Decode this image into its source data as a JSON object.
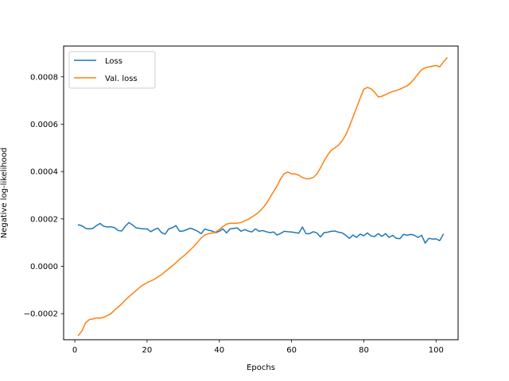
{
  "chart_data": {
    "type": "line",
    "title": "",
    "xlabel": "Epochs",
    "ylabel": "Negative log-likelihood",
    "xlim": [
      -3.1,
      106.1
    ],
    "ylim": [
      -0.00031,
      0.00093
    ],
    "x_ticks": [
      0,
      20,
      40,
      60,
      80,
      100
    ],
    "x_tick_labels": [
      "0",
      "20",
      "40",
      "60",
      "80",
      "100"
    ],
    "y_ticks": [
      -0.0002,
      0.0,
      0.0002,
      0.0004,
      0.0006,
      0.0008
    ],
    "y_tick_labels": [
      "−0.0002",
      "0.0000",
      "0.0002",
      "0.0004",
      "0.0006",
      "0.0008"
    ],
    "grid": false,
    "legend_position": "top-left",
    "series": [
      {
        "name": "Loss",
        "color": "#1f77b4",
        "points": [
          [
            1,
            0.000175
          ],
          [
            2,
            0.000171
          ],
          [
            3,
            0.00016
          ],
          [
            4,
            0.000158
          ],
          [
            5,
            0.00016
          ],
          [
            6,
            0.000172
          ],
          [
            7,
            0.000181
          ],
          [
            8,
            0.000169
          ],
          [
            9,
            0.000166
          ],
          [
            10,
            0.000167
          ],
          [
            11,
            0.000163
          ],
          [
            12,
            0.000151
          ],
          [
            13,
            0.000149
          ],
          [
            14,
            0.00017
          ],
          [
            15,
            0.000185
          ],
          [
            16,
            0.000174
          ],
          [
            17,
            0.000162
          ],
          [
            18,
            0.00016
          ],
          [
            19,
            0.000158
          ],
          [
            20,
            0.000158
          ],
          [
            21,
            0.000146
          ],
          [
            22,
            0.000155
          ],
          [
            23,
            0.000161
          ],
          [
            24,
            0.000142
          ],
          [
            25,
            0.000136
          ],
          [
            26,
            0.000158
          ],
          [
            27,
            0.000163
          ],
          [
            28,
            0.000172
          ],
          [
            29,
            0.000148
          ],
          [
            30,
            0.000149
          ],
          [
            31,
            0.000155
          ],
          [
            32,
            0.000161
          ],
          [
            33,
            0.000155
          ],
          [
            34,
            0.000148
          ],
          [
            35,
            0.000138
          ],
          [
            36,
            0.000158
          ],
          [
            37,
            0.000152
          ],
          [
            38,
            0.000149
          ],
          [
            39,
            0.000142
          ],
          [
            40,
            0.000148
          ],
          [
            41,
            0.000158
          ],
          [
            42,
            0.000141
          ],
          [
            43,
            0.000158
          ],
          [
            44,
            0.00016
          ],
          [
            45,
            0.000162
          ],
          [
            46,
            0.000148
          ],
          [
            47,
            0.000155
          ],
          [
            48,
            0.000149
          ],
          [
            49,
            0.000145
          ],
          [
            50,
            0.000158
          ],
          [
            51,
            0.000148
          ],
          [
            52,
            0.000151
          ],
          [
            53,
            0.000146
          ],
          [
            54,
            0.000142
          ],
          [
            55,
            0.000145
          ],
          [
            56,
            0.000132
          ],
          [
            57,
            0.000139
          ],
          [
            58,
            0.000148
          ],
          [
            59,
            0.000146
          ],
          [
            60,
            0.000145
          ],
          [
            61,
            0.000142
          ],
          [
            62,
            0.00014
          ],
          [
            63,
            0.000166
          ],
          [
            64,
            0.000138
          ],
          [
            65,
            0.000138
          ],
          [
            66,
            0.000146
          ],
          [
            67,
            0.000141
          ],
          [
            68,
            0.000124
          ],
          [
            69,
            0.000142
          ],
          [
            70,
            0.000144
          ],
          [
            71,
            0.000148
          ],
          [
            72,
            0.000149
          ],
          [
            73,
            0.000144
          ],
          [
            74,
            0.000141
          ],
          [
            75,
            0.000131
          ],
          [
            76,
            0.000118
          ],
          [
            77,
            0.000132
          ],
          [
            78,
            0.000122
          ],
          [
            79,
            0.000136
          ],
          [
            80,
            0.000129
          ],
          [
            81,
            0.000141
          ],
          [
            82,
            0.000128
          ],
          [
            83,
            0.000126
          ],
          [
            84,
            0.000138
          ],
          [
            85,
            0.000126
          ],
          [
            86,
            0.000138
          ],
          [
            87,
            0.000122
          ],
          [
            88,
            0.000131
          ],
          [
            89,
            0.000118
          ],
          [
            90,
            0.000117
          ],
          [
            91,
            0.000135
          ],
          [
            92,
            0.000131
          ],
          [
            93,
            0.000135
          ],
          [
            94,
            0.000131
          ],
          [
            95,
            0.000122
          ],
          [
            96,
            0.000131
          ],
          [
            97,
            9.8e-05
          ],
          [
            98,
            0.000118
          ],
          [
            99,
            0.000115
          ],
          [
            100,
            0.000116
          ],
          [
            101,
            0.000108
          ],
          [
            102,
            0.000135
          ]
        ]
      },
      {
        "name": "Val. loss",
        "color": "#ff7f0e",
        "points": [
          [
            1,
            -0.000292
          ],
          [
            2,
            -0.000272
          ],
          [
            3,
            -0.000238
          ],
          [
            4,
            -0.000225
          ],
          [
            5,
            -0.000222
          ],
          [
            6,
            -0.000218
          ],
          [
            7,
            -0.000219
          ],
          [
            8,
            -0.000215
          ],
          [
            9,
            -0.000208
          ],
          [
            10,
            -0.0002
          ],
          [
            11,
            -0.000185
          ],
          [
            12,
            -0.000172
          ],
          [
            13,
            -0.000158
          ],
          [
            14,
            -0.000142
          ],
          [
            15,
            -0.000128
          ],
          [
            16,
            -0.000115
          ],
          [
            17,
            -0.000102
          ],
          [
            18,
            -8.8e-05
          ],
          [
            19,
            -7.8e-05
          ],
          [
            20,
            -6.9e-05
          ],
          [
            21,
            -6.2e-05
          ],
          [
            22,
            -5.5e-05
          ],
          [
            23,
            -4.5e-05
          ],
          [
            24,
            -3.5e-05
          ],
          [
            25,
            -2.2e-05
          ],
          [
            26,
            -1e-05
          ],
          [
            27,
            2e-06
          ],
          [
            28,
            1.5e-05
          ],
          [
            29,
            3e-05
          ],
          [
            30,
            4.2e-05
          ],
          [
            31,
            5.5e-05
          ],
          [
            32,
            7e-05
          ],
          [
            33,
            8.5e-05
          ],
          [
            34,
            0.000102
          ],
          [
            35,
            0.00012
          ],
          [
            36,
            0.000132
          ],
          [
            37,
            0.000138
          ],
          [
            38,
            0.00014
          ],
          [
            39,
            0.000145
          ],
          [
            40,
            0.000155
          ],
          [
            41,
            0.000168
          ],
          [
            42,
            0.000178
          ],
          [
            43,
            0.000182
          ],
          [
            44,
            0.000182
          ],
          [
            45,
            0.000182
          ],
          [
            46,
            0.000185
          ],
          [
            47,
            0.000192
          ],
          [
            48,
            0.000198
          ],
          [
            49,
            0.000208
          ],
          [
            50,
            0.000218
          ],
          [
            51,
            0.00023
          ],
          [
            52,
            0.000245
          ],
          [
            53,
            0.000265
          ],
          [
            54,
            0.00029
          ],
          [
            55,
            0.000315
          ],
          [
            56,
            0.00034
          ],
          [
            57,
            0.00037
          ],
          [
            58,
            0.000392
          ],
          [
            59,
            0.000398
          ],
          [
            60,
            0.00039
          ],
          [
            61,
            0.00039
          ],
          [
            62,
            0.000385
          ],
          [
            63,
            0.000375
          ],
          [
            64,
            0.00037
          ],
          [
            65,
            0.00037
          ],
          [
            66,
            0.000375
          ],
          [
            67,
            0.00039
          ],
          [
            68,
            0.000415
          ],
          [
            69,
            0.000445
          ],
          [
            70,
            0.00047
          ],
          [
            71,
            0.00049
          ],
          [
            72,
            0.0005
          ],
          [
            73,
            0.000512
          ],
          [
            74,
            0.00053
          ],
          [
            75,
            0.000555
          ],
          [
            76,
            0.00059
          ],
          [
            77,
            0.00063
          ],
          [
            78,
            0.00067
          ],
          [
            79,
            0.00071
          ],
          [
            80,
            0.000748
          ],
          [
            81,
            0.000755
          ],
          [
            82,
            0.00075
          ],
          [
            83,
            0.000735
          ],
          [
            84,
            0.000715
          ],
          [
            85,
            0.000718
          ],
          [
            86,
            0.000725
          ],
          [
            87,
            0.000732
          ],
          [
            88,
            0.000738
          ],
          [
            89,
            0.000742
          ],
          [
            90,
            0.000748
          ],
          [
            91,
            0.000755
          ],
          [
            92,
            0.000762
          ],
          [
            93,
            0.000775
          ],
          [
            94,
            0.000792
          ],
          [
            95,
            0.000812
          ],
          [
            96,
            0.00083
          ],
          [
            97,
            0.000838
          ],
          [
            98,
            0.000842
          ],
          [
            99,
            0.000845
          ],
          [
            100,
            0.000848
          ],
          [
            101,
            0.000842
          ],
          [
            102,
            0.000862
          ],
          [
            103,
            0.00088
          ]
        ]
      }
    ]
  }
}
